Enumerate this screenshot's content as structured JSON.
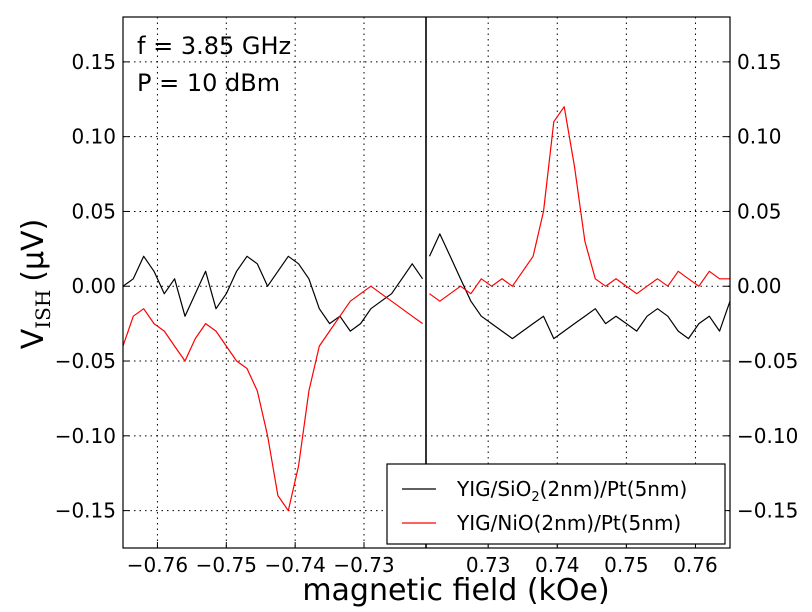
{
  "chart_data": {
    "type": "line",
    "xlabel": "magnetic field (kOe)",
    "ylabel": "V",
    "ylabel_sub": "ISH",
    "ylabel_unit": "(μV)",
    "annotations": [
      "f = 3.85 GHz",
      "P = 10 dBm"
    ],
    "grid": true,
    "broken_x_axis": true,
    "y_ticks": [
      "0.15",
      "0.10",
      "0.05",
      "0.00",
      "−0.05",
      "−0.10",
      "−0.15"
    ],
    "y_tick_values": [
      0.15,
      0.1,
      0.05,
      0.0,
      -0.05,
      -0.1,
      -0.15
    ],
    "ylim": [
      -0.175,
      0.18
    ],
    "panels": [
      {
        "name": "negative-field",
        "xlim": [
          -0.765,
          -0.721
        ],
        "x_ticks": [
          "−0.76",
          "−0.75",
          "−0.74",
          "−0.73"
        ],
        "x_tick_values": [
          -0.76,
          -0.75,
          -0.74,
          -0.73
        ]
      },
      {
        "name": "positive-field",
        "xlim": [
          0.721,
          0.765
        ],
        "x_ticks": [
          "0.73",
          "0.74",
          "0.75",
          "0.76"
        ],
        "x_tick_values": [
          0.73,
          0.74,
          0.75,
          0.76
        ]
      }
    ],
    "legend_position": "lower-right",
    "series": [
      {
        "name_prefix": "YIG/SiO",
        "name_sub": "2",
        "name_suffix": "(2nm)/Pt(5nm)",
        "color": "#000000",
        "negative": {
          "x": [
            -0.765,
            -0.7635,
            -0.762,
            -0.7605,
            -0.759,
            -0.7575,
            -0.756,
            -0.7545,
            -0.753,
            -0.7515,
            -0.75,
            -0.7485,
            -0.747,
            -0.7455,
            -0.744,
            -0.7425,
            -0.741,
            -0.7395,
            -0.738,
            -0.7365,
            -0.735,
            -0.7335,
            -0.732,
            -0.7305,
            -0.729,
            -0.7275,
            -0.726,
            -0.7245,
            -0.723,
            -0.7215
          ],
          "y": [
            0.0,
            0.005,
            0.02,
            0.01,
            -0.005,
            0.005,
            -0.02,
            -0.005,
            0.01,
            -0.015,
            -0.005,
            0.01,
            0.02,
            0.015,
            0.0,
            0.01,
            0.02,
            0.015,
            0.005,
            -0.015,
            -0.025,
            -0.02,
            -0.03,
            -0.025,
            -0.015,
            -0.01,
            -0.005,
            0.005,
            0.015,
            0.005
          ]
        },
        "positive": {
          "x": [
            0.7215,
            0.723,
            0.7245,
            0.726,
            0.7275,
            0.729,
            0.7305,
            0.732,
            0.7335,
            0.735,
            0.7365,
            0.738,
            0.7395,
            0.741,
            0.7425,
            0.744,
            0.7455,
            0.747,
            0.7485,
            0.75,
            0.7515,
            0.753,
            0.7545,
            0.756,
            0.7575,
            0.759,
            0.7605,
            0.762,
            0.7635,
            0.765
          ],
          "y": [
            0.02,
            0.035,
            0.02,
            0.005,
            -0.01,
            -0.02,
            -0.025,
            -0.03,
            -0.035,
            -0.03,
            -0.025,
            -0.02,
            -0.035,
            -0.03,
            -0.025,
            -0.02,
            -0.015,
            -0.025,
            -0.02,
            -0.025,
            -0.03,
            -0.02,
            -0.015,
            -0.02,
            -0.03,
            -0.035,
            -0.025,
            -0.02,
            -0.03,
            -0.01
          ]
        }
      },
      {
        "name_prefix": "YIG/NiO(2nm)/Pt(5nm)",
        "name_sub": "",
        "name_suffix": "",
        "color": "#ff0000",
        "negative": {
          "x": [
            -0.765,
            -0.7635,
            -0.762,
            -0.7605,
            -0.759,
            -0.7575,
            -0.756,
            -0.7545,
            -0.753,
            -0.7515,
            -0.75,
            -0.7485,
            -0.747,
            -0.7455,
            -0.744,
            -0.7425,
            -0.741,
            -0.7395,
            -0.738,
            -0.7365,
            -0.735,
            -0.7335,
            -0.732,
            -0.7305,
            -0.729,
            -0.7275,
            -0.726,
            -0.7245,
            -0.723,
            -0.7215
          ],
          "y": [
            -0.04,
            -0.02,
            -0.015,
            -0.025,
            -0.03,
            -0.04,
            -0.05,
            -0.035,
            -0.025,
            -0.03,
            -0.04,
            -0.05,
            -0.055,
            -0.07,
            -0.1,
            -0.14,
            -0.15,
            -0.12,
            -0.07,
            -0.04,
            -0.03,
            -0.02,
            -0.01,
            -0.005,
            0.0,
            -0.005,
            -0.01,
            -0.015,
            -0.02,
            -0.025
          ]
        },
        "positive": {
          "x": [
            0.7215,
            0.723,
            0.7245,
            0.726,
            0.7275,
            0.729,
            0.7305,
            0.732,
            0.7335,
            0.735,
            0.7365,
            0.738,
            0.7395,
            0.741,
            0.7425,
            0.744,
            0.7455,
            0.747,
            0.7485,
            0.75,
            0.7515,
            0.753,
            0.7545,
            0.756,
            0.7575,
            0.759,
            0.7605,
            0.762,
            0.7635,
            0.765
          ],
          "y": [
            -0.005,
            -0.01,
            -0.005,
            0.0,
            -0.005,
            0.005,
            0.0,
            0.005,
            0.0,
            0.01,
            0.02,
            0.05,
            0.11,
            0.12,
            0.08,
            0.03,
            0.005,
            0.0,
            0.005,
            0.0,
            -0.005,
            0.0,
            0.005,
            0.0,
            0.01,
            0.005,
            0.0,
            0.01,
            0.005,
            0.005
          ]
        }
      }
    ]
  }
}
